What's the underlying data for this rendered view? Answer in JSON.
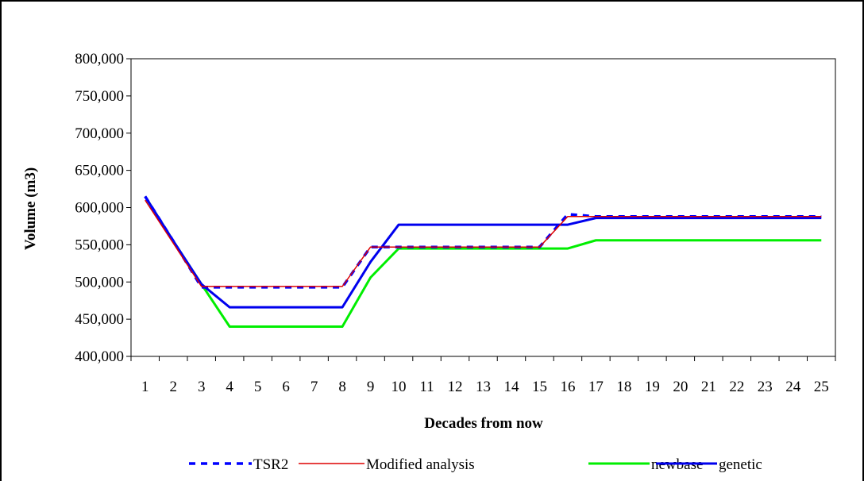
{
  "chart_data": {
    "type": "line",
    "xlabel": "Decades from now",
    "ylabel": "Volume (m3)",
    "x": [
      "1",
      "2",
      "3",
      "4",
      "5",
      "6",
      "7",
      "8",
      "9",
      "10",
      "11",
      "12",
      "13",
      "14",
      "15",
      "16",
      "17",
      "18",
      "19",
      "20",
      "21",
      "22",
      "23",
      "24",
      "25"
    ],
    "ylim": [
      400000,
      800000
    ],
    "yticks": [
      400000,
      450000,
      500000,
      550000,
      600000,
      650000,
      700000,
      750000,
      800000
    ],
    "ytick_labels": [
      "400,000",
      "450,000",
      "500,000",
      "550,000",
      "600,000",
      "650,000",
      "700,000",
      "750,000",
      "800,000"
    ],
    "grid": false,
    "legend_position": "bottom",
    "series": [
      {
        "name": "TSR2",
        "color": "#0000ff",
        "style": "dashed",
        "values": [
          615000,
          555000,
          493000,
          493000,
          493000,
          493000,
          493000,
          493000,
          547000,
          547000,
          547000,
          547000,
          547000,
          547000,
          547000,
          591000,
          588000,
          588000,
          588000,
          588000,
          588000,
          588000,
          588000,
          588000,
          588000
        ]
      },
      {
        "name": "Modified analysis",
        "color": "#dd0000",
        "style": "solid-thin",
        "values": [
          610000,
          552000,
          494000,
          494000,
          494000,
          494000,
          494000,
          494000,
          547000,
          547000,
          547000,
          547000,
          547000,
          547000,
          547000,
          588000,
          588000,
          588000,
          588000,
          588000,
          588000,
          588000,
          588000,
          588000,
          588000
        ]
      },
      {
        "name": "newbase",
        "color": "#00ee00",
        "style": "solid",
        "values": [
          615000,
          555000,
          497000,
          440000,
          440000,
          440000,
          440000,
          440000,
          506000,
          545000,
          545000,
          545000,
          545000,
          545000,
          545000,
          545000,
          556000,
          556000,
          556000,
          556000,
          556000,
          556000,
          556000,
          556000,
          556000
        ]
      },
      {
        "name": "genetic",
        "color": "#0000ee",
        "style": "solid",
        "values": [
          615000,
          555000,
          497000,
          466000,
          466000,
          466000,
          466000,
          466000,
          527000,
          577000,
          577000,
          577000,
          577000,
          577000,
          577000,
          577000,
          586000,
          586000,
          586000,
          586000,
          586000,
          586000,
          586000,
          586000,
          586000
        ]
      }
    ]
  }
}
